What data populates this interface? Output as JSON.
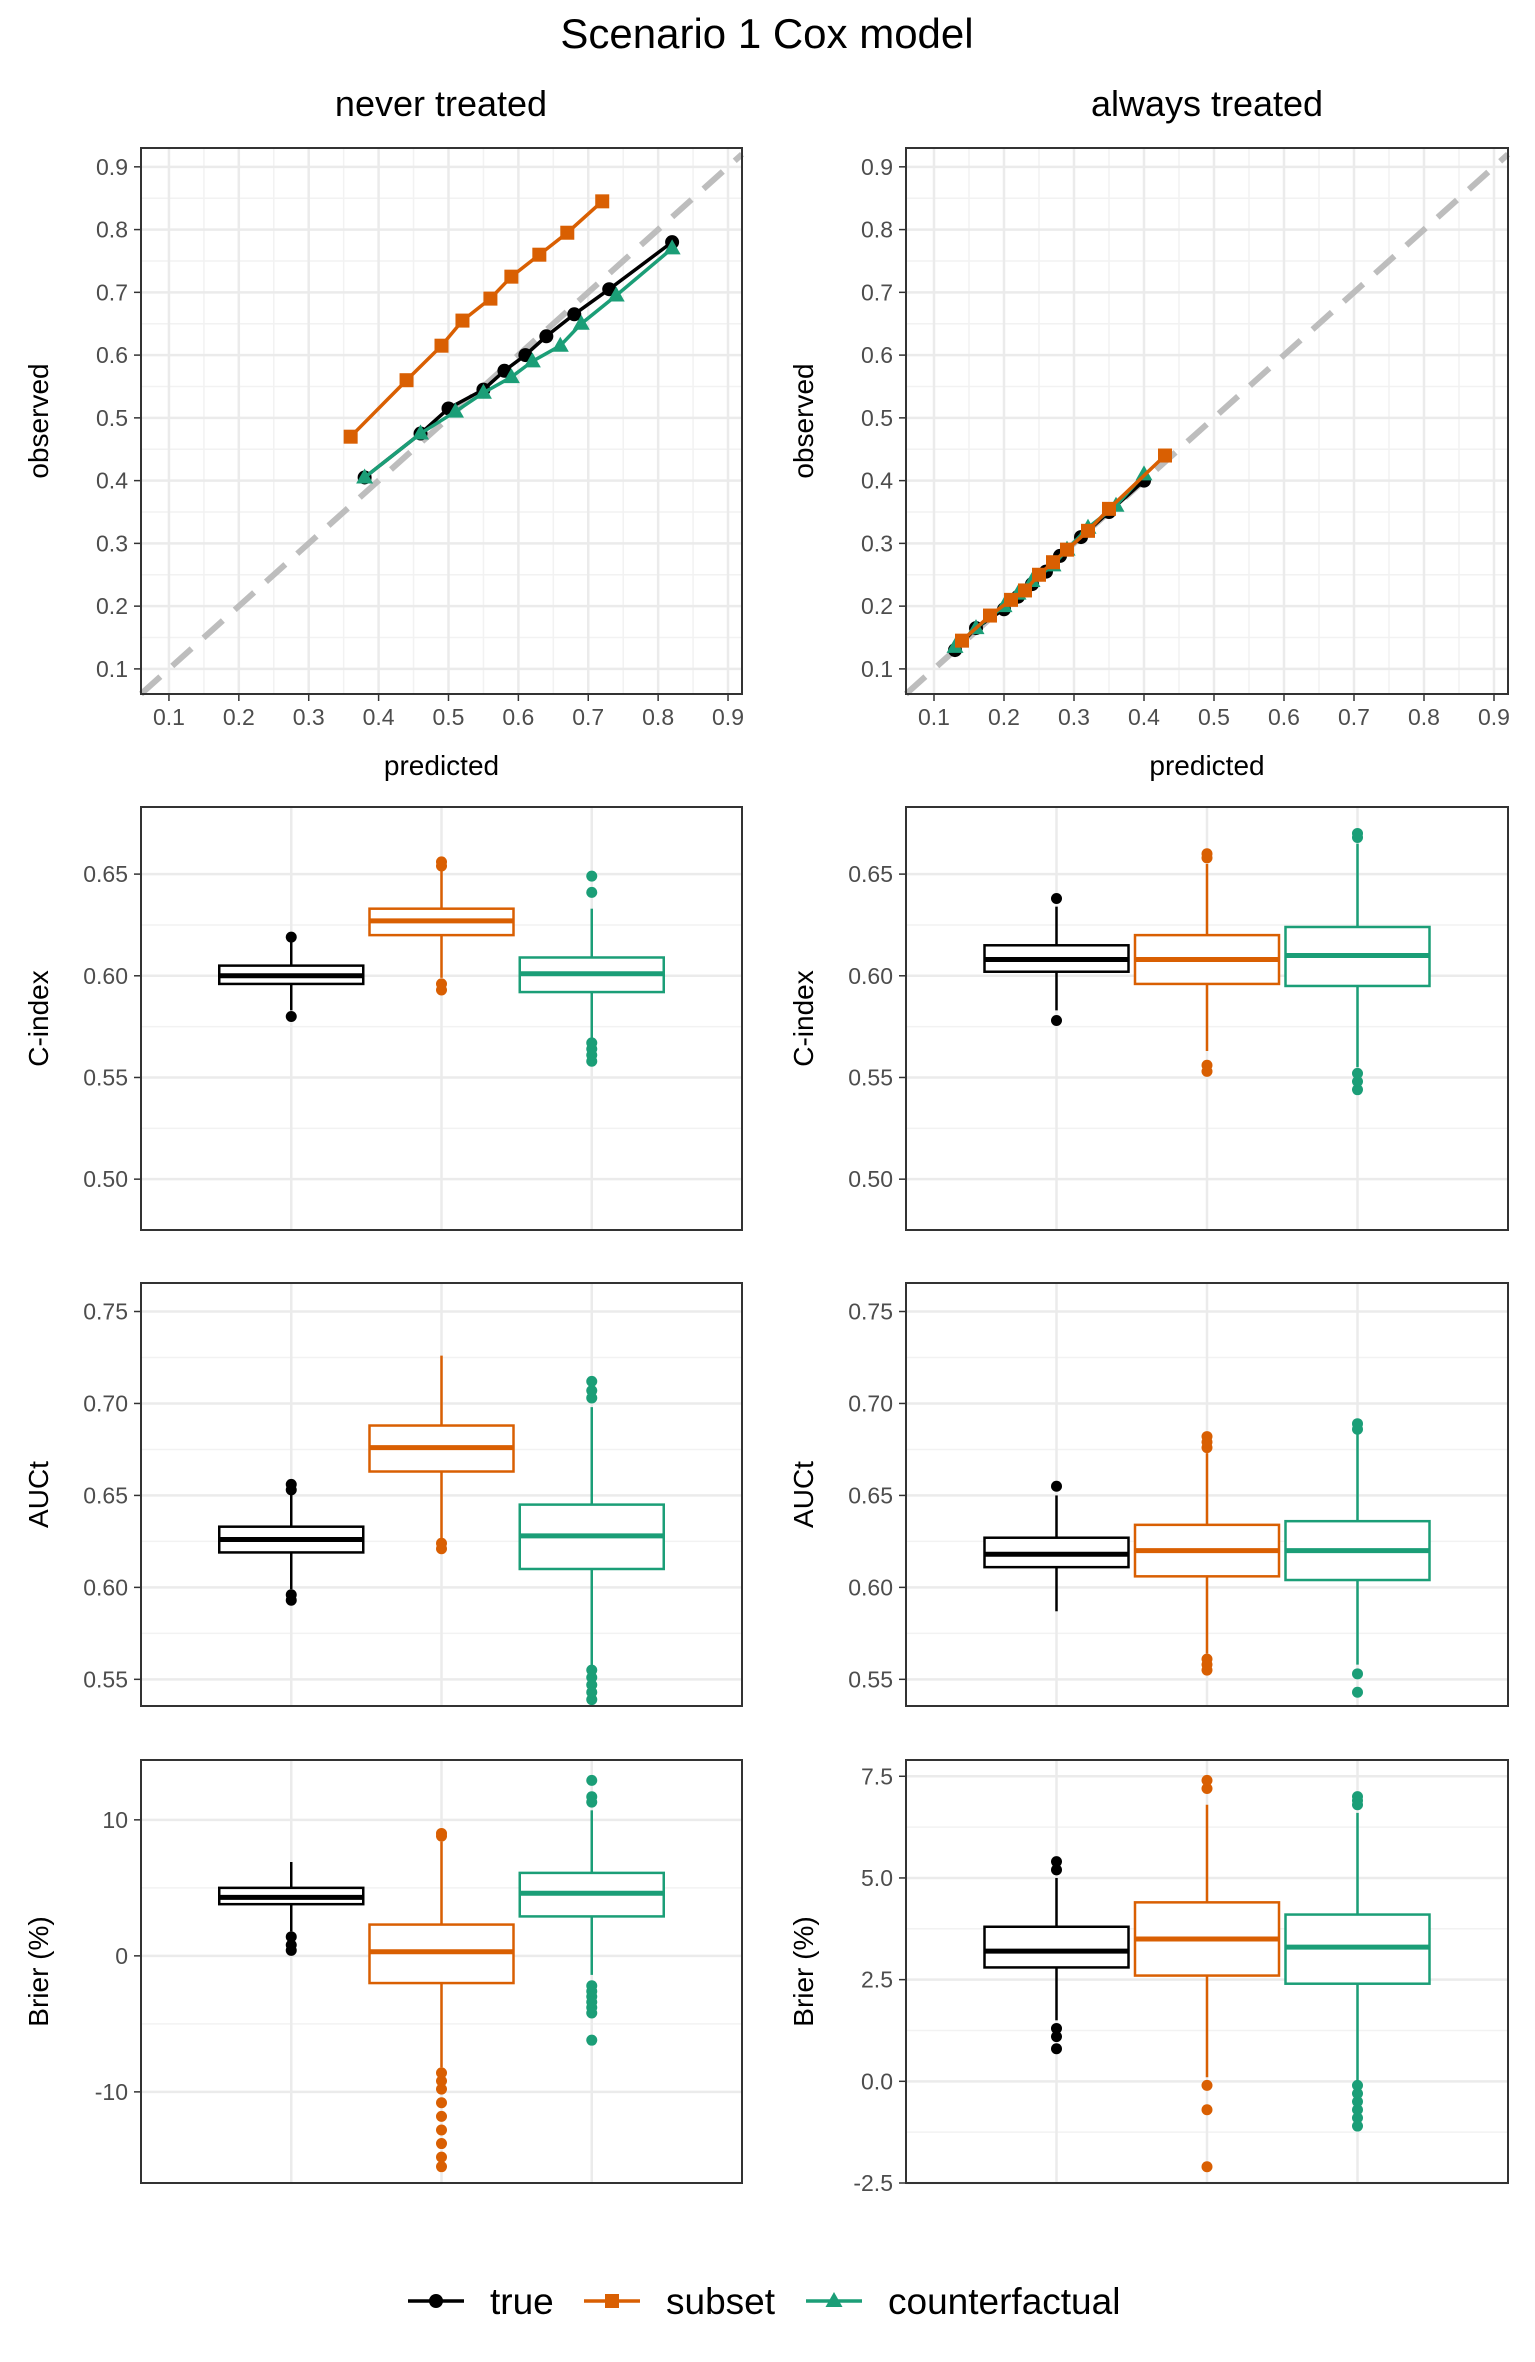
{
  "chart_data": {
    "type": "faceted",
    "title": "Scenario 1 Cox model",
    "columns": [
      "never treated",
      "always treated"
    ],
    "colors": {
      "true": "#000000",
      "subset": "#D95F02",
      "counterfactual": "#1B9E77",
      "reference": "#bdbdbd"
    },
    "legend": {
      "position": "bottom",
      "entries": [
        {
          "key": "true",
          "label": "true",
          "shape": "circle"
        },
        {
          "key": "subset",
          "label": "subset",
          "shape": "square"
        },
        {
          "key": "counterfactual",
          "label": "counterfactual",
          "shape": "triangle"
        }
      ]
    },
    "calibration": {
      "type": "line",
      "xlabel": "predicted",
      "ylabel": "observed",
      "xlim": [
        0.06,
        0.92
      ],
      "ylim": [
        0.06,
        0.93
      ],
      "ticks": [
        0.1,
        0.2,
        0.3,
        0.4,
        0.5,
        0.6,
        0.7,
        0.8,
        0.9
      ],
      "tick_labels": [
        "0.1",
        "0.2",
        "0.3",
        "0.4",
        "0.5",
        "0.6",
        "0.7",
        "0.8",
        "0.9"
      ],
      "reference_line": "y = x",
      "panels": [
        {
          "facet": "never treated",
          "series": [
            {
              "name": "subset",
              "x": [
                0.36,
                0.44,
                0.49,
                0.52,
                0.56,
                0.59,
                0.63,
                0.67,
                0.72
              ],
              "y": [
                0.47,
                0.56,
                0.615,
                0.655,
                0.69,
                0.725,
                0.76,
                0.795,
                0.845
              ]
            },
            {
              "name": "true",
              "x": [
                0.38,
                0.46,
                0.5,
                0.55,
                0.58,
                0.61,
                0.64,
                0.68,
                0.73,
                0.82
              ],
              "y": [
                0.405,
                0.475,
                0.515,
                0.545,
                0.575,
                0.6,
                0.63,
                0.665,
                0.705,
                0.78
              ]
            },
            {
              "name": "counterfactual",
              "x": [
                0.38,
                0.46,
                0.51,
                0.55,
                0.59,
                0.62,
                0.66,
                0.69,
                0.74,
                0.82
              ],
              "y": [
                0.405,
                0.475,
                0.51,
                0.54,
                0.565,
                0.59,
                0.615,
                0.65,
                0.695,
                0.77
              ]
            }
          ]
        },
        {
          "facet": "always treated",
          "series": [
            {
              "name": "true",
              "x": [
                0.13,
                0.16,
                0.2,
                0.22,
                0.24,
                0.26,
                0.28,
                0.31,
                0.35,
                0.4
              ],
              "y": [
                0.13,
                0.165,
                0.195,
                0.215,
                0.235,
                0.255,
                0.28,
                0.31,
                0.35,
                0.4
              ]
            },
            {
              "name": "counterfactual",
              "x": [
                0.13,
                0.16,
                0.2,
                0.22,
                0.24,
                0.27,
                0.29,
                0.32,
                0.36,
                0.4
              ],
              "y": [
                0.135,
                0.165,
                0.2,
                0.22,
                0.24,
                0.265,
                0.29,
                0.325,
                0.36,
                0.41
              ]
            },
            {
              "name": "subset",
              "x": [
                0.14,
                0.18,
                0.21,
                0.23,
                0.25,
                0.27,
                0.29,
                0.32,
                0.35,
                0.43
              ],
              "y": [
                0.145,
                0.185,
                0.21,
                0.225,
                0.25,
                0.27,
                0.29,
                0.32,
                0.355,
                0.44
              ]
            }
          ]
        }
      ]
    },
    "boxplot_rows": [
      {
        "metric": "C-index",
        "ylabel": "C-index",
        "panels": [
          {
            "facet": "never treated",
            "ylim": [
              0.475,
              0.683
            ],
            "ticks": [
              0.5,
              0.55,
              0.6,
              0.65
            ],
            "tick_labels": [
              "0.50",
              "0.55",
              "0.60",
              "0.65"
            ],
            "boxes": [
              {
                "name": "true",
                "q1": 0.596,
                "median": 0.6,
                "q3": 0.605,
                "whisker_low": 0.583,
                "whisker_high": 0.617,
                "outliers": [
                  0.58,
                  0.619
                ]
              },
              {
                "name": "subset",
                "q1": 0.62,
                "median": 0.627,
                "q3": 0.633,
                "whisker_low": 0.599,
                "whisker_high": 0.652,
                "outliers": [
                  0.593,
                  0.596,
                  0.654,
                  0.656
                ]
              },
              {
                "name": "counterfactual",
                "q1": 0.592,
                "median": 0.601,
                "q3": 0.609,
                "whisker_low": 0.568,
                "whisker_high": 0.633,
                "outliers": [
                  0.558,
                  0.561,
                  0.564,
                  0.567,
                  0.641,
                  0.649
                ]
              }
            ]
          },
          {
            "facet": "always treated",
            "ylim": [
              0.475,
              0.683
            ],
            "ticks": [
              0.5,
              0.55,
              0.6,
              0.65
            ],
            "tick_labels": [
              "0.50",
              "0.55",
              "0.60",
              "0.65"
            ],
            "boxes": [
              {
                "name": "true",
                "q1": 0.602,
                "median": 0.608,
                "q3": 0.615,
                "whisker_low": 0.583,
                "whisker_high": 0.634,
                "outliers": [
                  0.578,
                  0.638
                ]
              },
              {
                "name": "subset",
                "q1": 0.596,
                "median": 0.608,
                "q3": 0.62,
                "whisker_low": 0.563,
                "whisker_high": 0.655,
                "outliers": [
                  0.553,
                  0.556,
                  0.658,
                  0.66
                ]
              },
              {
                "name": "counterfactual",
                "q1": 0.595,
                "median": 0.61,
                "q3": 0.624,
                "whisker_low": 0.555,
                "whisker_high": 0.665,
                "outliers": [
                  0.544,
                  0.548,
                  0.552,
                  0.668,
                  0.67
                ]
              }
            ]
          }
        ]
      },
      {
        "metric": "AUCt",
        "ylabel": "AUCt",
        "panels": [
          {
            "facet": "never treated",
            "ylim": [
              0.5355,
              0.7655
            ],
            "ticks": [
              0.55,
              0.6,
              0.65,
              0.7,
              0.75
            ],
            "tick_labels": [
              "0.55",
              "0.60",
              "0.65",
              "0.70",
              "0.75"
            ],
            "boxes": [
              {
                "name": "true",
                "q1": 0.619,
                "median": 0.626,
                "q3": 0.633,
                "whisker_low": 0.599,
                "whisker_high": 0.651,
                "outliers": [
                  0.593,
                  0.596,
                  0.653,
                  0.656
                ]
              },
              {
                "name": "subset",
                "q1": 0.663,
                "median": 0.676,
                "q3": 0.688,
                "whisker_low": 0.626,
                "whisker_high": 0.726,
                "outliers": [
                  0.621,
                  0.624
                ]
              },
              {
                "name": "counterfactual",
                "q1": 0.61,
                "median": 0.628,
                "q3": 0.645,
                "whisker_low": 0.556,
                "whisker_high": 0.698,
                "outliers": [
                  0.539,
                  0.543,
                  0.547,
                  0.551,
                  0.555,
                  0.703,
                  0.707,
                  0.712
                ]
              }
            ]
          },
          {
            "facet": "always treated",
            "ylim": [
              0.5355,
              0.7655
            ],
            "ticks": [
              0.55,
              0.6,
              0.65,
              0.7,
              0.75
            ],
            "tick_labels": [
              "0.55",
              "0.60",
              "0.65",
              "0.70",
              "0.75"
            ],
            "boxes": [
              {
                "name": "true",
                "q1": 0.611,
                "median": 0.618,
                "q3": 0.627,
                "whisker_low": 0.587,
                "whisker_high": 0.65,
                "outliers": [
                  0.655
                ]
              },
              {
                "name": "subset",
                "q1": 0.606,
                "median": 0.62,
                "q3": 0.634,
                "whisker_low": 0.564,
                "whisker_high": 0.673,
                "outliers": [
                  0.555,
                  0.558,
                  0.561,
                  0.676,
                  0.679,
                  0.682
                ]
              },
              {
                "name": "counterfactual",
                "q1": 0.604,
                "median": 0.62,
                "q3": 0.636,
                "whisker_low": 0.558,
                "whisker_high": 0.684,
                "outliers": [
                  0.543,
                  0.553,
                  0.686,
                  0.689
                ]
              }
            ]
          }
        ]
      },
      {
        "metric": "Brier",
        "ylabel": "Brier (%)",
        "panels": [
          {
            "facet": "never treated",
            "ylim": [
              -16.7,
              14.4
            ],
            "ticks": [
              -10,
              0,
              10
            ],
            "tick_labels": [
              "-10",
              "0",
              "10"
            ],
            "boxes": [
              {
                "name": "true",
                "q1": 3.8,
                "median": 4.3,
                "q3": 5.0,
                "whisker_low": 1.8,
                "whisker_high": 6.9,
                "outliers": [
                  0.4,
                  0.8,
                  1.4
                ]
              },
              {
                "name": "subset",
                "q1": -2.0,
                "median": 0.3,
                "q3": 2.3,
                "whisker_low": -8.2,
                "whisker_high": 8.4,
                "outliers": [
                  -15.5,
                  -14.8,
                  -13.8,
                  -12.8,
                  -11.8,
                  -10.8,
                  -9.8,
                  -9.2,
                  -8.6,
                  8.8,
                  9.0
                ]
              },
              {
                "name": "counterfactual",
                "q1": 2.9,
                "median": 4.6,
                "q3": 6.1,
                "whisker_low": -1.4,
                "whisker_high": 10.7,
                "outliers": [
                  -6.2,
                  -4.2,
                  -3.8,
                  -3.4,
                  -3.0,
                  -2.6,
                  -2.2,
                  11.3,
                  11.7,
                  12.9
                ]
              }
            ]
          },
          {
            "facet": "always treated",
            "ylim": [
              -2.5,
              7.9
            ],
            "ticks": [
              -2.5,
              0,
              2.5,
              5,
              7.5
            ],
            "tick_labels": [
              "-2.5",
              "0.0",
              "2.5",
              "5.0",
              "7.5"
            ],
            "boxes": [
              {
                "name": "true",
                "q1": 2.8,
                "median": 3.2,
                "q3": 3.8,
                "whisker_low": 1.5,
                "whisker_high": 5.0,
                "outliers": [
                  0.8,
                  1.1,
                  1.3,
                  5.2,
                  5.4
                ]
              },
              {
                "name": "subset",
                "q1": 2.6,
                "median": 3.5,
                "q3": 4.4,
                "whisker_low": 0.1,
                "whisker_high": 6.8,
                "outliers": [
                  -2.1,
                  -0.7,
                  -0.1,
                  7.2,
                  7.4
                ]
              },
              {
                "name": "counterfactual",
                "q1": 2.4,
                "median": 3.3,
                "q3": 4.1,
                "whisker_low": -0.2,
                "whisker_high": 6.6,
                "outliers": [
                  -1.1,
                  -0.9,
                  -0.7,
                  -0.5,
                  -0.3,
                  -0.1,
                  6.8,
                  6.9,
                  7.0
                ]
              }
            ]
          }
        ]
      }
    ]
  }
}
